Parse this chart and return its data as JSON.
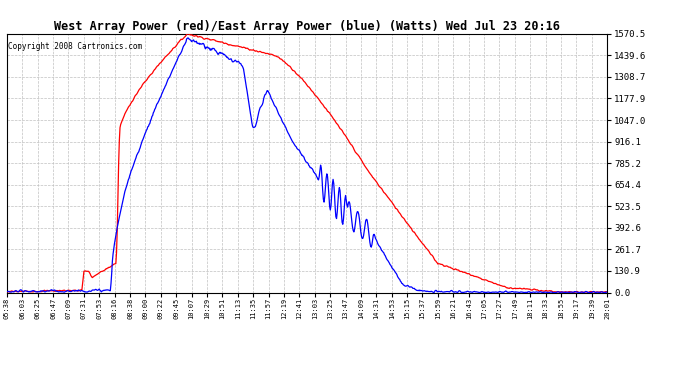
{
  "title": "West Array Power (red)/East Array Power (blue) (Watts) Wed Jul 23 20:16",
  "copyright": "Copyright 2008 Cartronics.com",
  "red_color": "#ff0000",
  "blue_color": "#0000ff",
  "yticks": [
    0.0,
    130.9,
    261.7,
    392.6,
    523.5,
    654.4,
    785.2,
    916.1,
    1047.0,
    1177.9,
    1308.7,
    1439.6,
    1570.5
  ],
  "xtick_labels": [
    "05:38",
    "06:03",
    "06:25",
    "06:47",
    "07:09",
    "07:31",
    "07:53",
    "08:16",
    "08:38",
    "09:00",
    "09:22",
    "09:45",
    "10:07",
    "10:29",
    "10:51",
    "11:13",
    "11:35",
    "11:57",
    "12:19",
    "12:41",
    "13:03",
    "13:25",
    "13:47",
    "14:09",
    "14:31",
    "14:53",
    "15:15",
    "15:37",
    "15:59",
    "16:21",
    "16:43",
    "17:05",
    "17:27",
    "17:49",
    "18:11",
    "18:33",
    "18:55",
    "19:17",
    "19:39",
    "20:01"
  ],
  "ymax": 1570.5,
  "ymin": 0.0,
  "n_xticks": 40
}
